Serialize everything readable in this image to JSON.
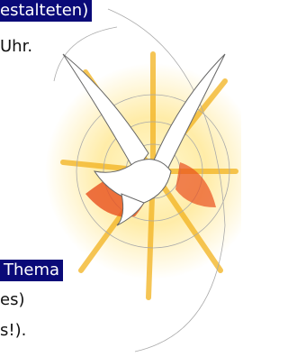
{
  "texts": {
    "heading_1": "estalteten)",
    "line_1": "Uhr.",
    "heading_2": "Thema",
    "line_2": "es)",
    "line_3": "s!)."
  }
}
